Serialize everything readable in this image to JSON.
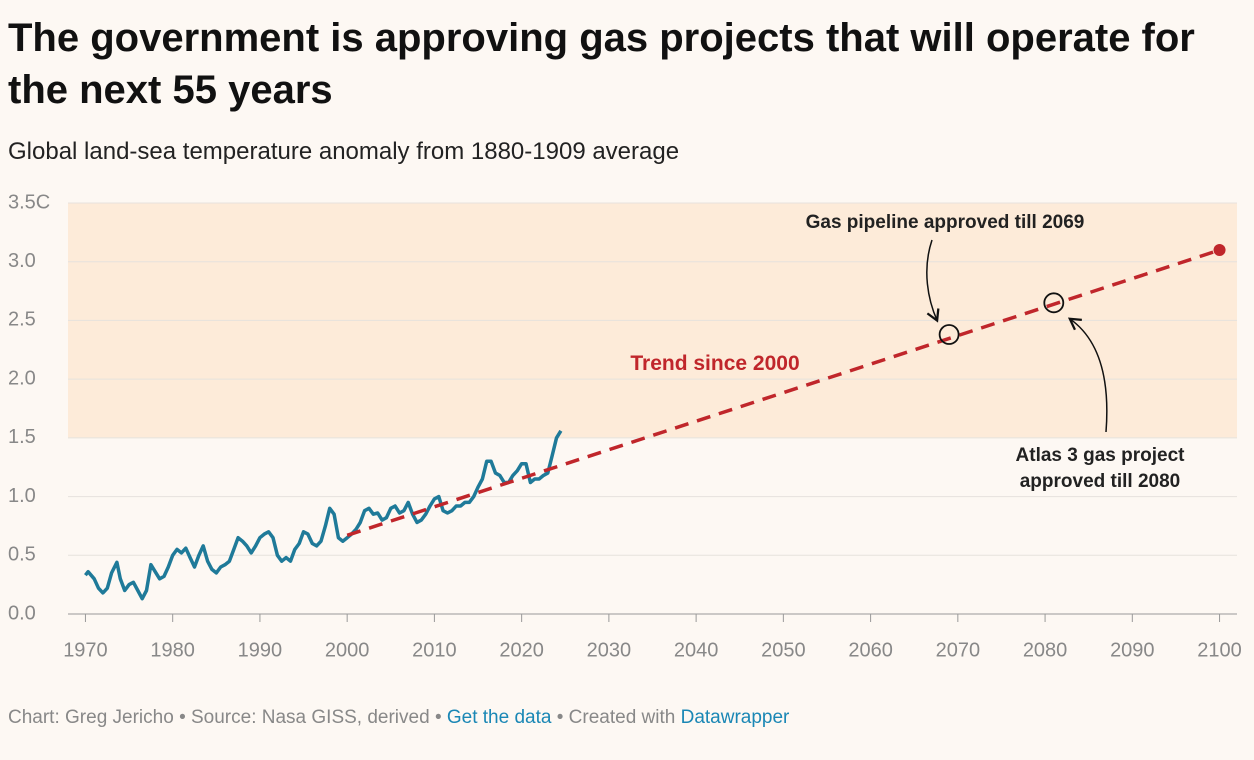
{
  "title": "The government is approving gas projects that will operate for the next 55 years",
  "subtitle": "Global land-sea temperature anomaly from 1880-1909 average",
  "chart_data": {
    "type": "line",
    "xlim": [
      1968,
      2102
    ],
    "xticks": [
      1970,
      1980,
      1990,
      2000,
      2010,
      2020,
      2030,
      2040,
      2050,
      2060,
      2070,
      2080,
      2090,
      2100
    ],
    "ylim": [
      0,
      3.5
    ],
    "yticks": [
      {
        "value": 0,
        "label": "0.0"
      },
      0.5,
      {
        "value": 1,
        "label": "1.0"
      },
      1.5,
      {
        "value": 2,
        "label": "2.0"
      },
      2.5,
      {
        "value": 3,
        "label": "3.0"
      },
      {
        "value": 3.5,
        "label": "3.5C"
      }
    ],
    "grid": true,
    "shaded_band": [
      1.5,
      3.5
    ],
    "shaded_color": "#fdebd9",
    "series": [
      {
        "color": "#1f7a99",
        "dashed": false,
        "x": [
          1970,
          1970.3,
          1971,
          1971.5,
          1972,
          1972.5,
          1973,
          1973.6,
          1974,
          1974.5,
          1975,
          1975.5,
          1976,
          1976.5,
          1977,
          1977.5,
          1978,
          1978.5,
          1979,
          1979.5,
          1980,
          1980.5,
          1981,
          1981.5,
          1982,
          1982.5,
          1983,
          1983.5,
          1984,
          1984.5,
          1985,
          1985.5,
          1986,
          1986.5,
          1987,
          1987.5,
          1988,
          1988.5,
          1989,
          1989.5,
          1990,
          1990.5,
          1991,
          1991.5,
          1992,
          1992.5,
          1993,
          1993.5,
          1994,
          1994.5,
          1995,
          1995.5,
          1996,
          1996.5,
          1997,
          1997.5,
          1998,
          1998.5,
          1999,
          1999.5,
          2000,
          2000.5,
          2001,
          2001.5,
          2002,
          2002.5,
          2003,
          2003.5,
          2004,
          2004.5,
          2005,
          2005.5,
          2006,
          2006.5,
          2007,
          2007.5,
          2008,
          2008.5,
          2009,
          2009.5,
          2010,
          2010.5,
          2011,
          2011.5,
          2012,
          2012.5,
          2013,
          2013.5,
          2014,
          2014.5,
          2015,
          2015.5,
          2016,
          2016.5,
          2017,
          2017.5,
          2018,
          2018.5,
          2019,
          2019.5,
          2020,
          2020.5,
          2021,
          2021.5,
          2022,
          2022.5,
          2023,
          2023.5,
          2024,
          2024.5
        ],
        "values": [
          0.33,
          0.36,
          0.3,
          0.22,
          0.18,
          0.22,
          0.35,
          0.44,
          0.3,
          0.2,
          0.25,
          0.27,
          0.2,
          0.13,
          0.2,
          0.42,
          0.36,
          0.3,
          0.32,
          0.4,
          0.5,
          0.55,
          0.52,
          0.56,
          0.48,
          0.4,
          0.5,
          0.58,
          0.45,
          0.38,
          0.35,
          0.4,
          0.42,
          0.45,
          0.55,
          0.65,
          0.62,
          0.58,
          0.52,
          0.58,
          0.65,
          0.68,
          0.7,
          0.65,
          0.5,
          0.45,
          0.48,
          0.45,
          0.55,
          0.6,
          0.7,
          0.68,
          0.6,
          0.58,
          0.62,
          0.75,
          0.9,
          0.85,
          0.65,
          0.62,
          0.65,
          0.68,
          0.72,
          0.78,
          0.88,
          0.9,
          0.85,
          0.86,
          0.8,
          0.82,
          0.9,
          0.92,
          0.86,
          0.88,
          0.95,
          0.85,
          0.78,
          0.8,
          0.85,
          0.92,
          0.98,
          1.0,
          0.88,
          0.86,
          0.88,
          0.92,
          0.92,
          0.95,
          0.95,
          1.0,
          1.08,
          1.15,
          1.3,
          1.3,
          1.2,
          1.18,
          1.12,
          1.12,
          1.18,
          1.22,
          1.28,
          1.28,
          1.12,
          1.15,
          1.15,
          1.18,
          1.2,
          1.35,
          1.5,
          1.56
        ]
      },
      {
        "color": "#c0262b",
        "dashed": true,
        "x": [
          2000,
          2100
        ],
        "values": [
          0.67,
          3.1
        ]
      }
    ],
    "trend_label": "Trend since 2000",
    "annotations": [
      {
        "text": "Gas pipeline approved till 2069",
        "x": 2069,
        "y": 2.38
      },
      {
        "text": "Atlas 3 gas project approved till 2080",
        "x": 2081,
        "y": 2.65
      }
    ]
  },
  "footer": {
    "credit": "Chart: Greg Jericho • Source: Nasa GISS, derived • ",
    "link1": "Get the data",
    "mid": " • Created with ",
    "link2": "Datawrapper"
  }
}
